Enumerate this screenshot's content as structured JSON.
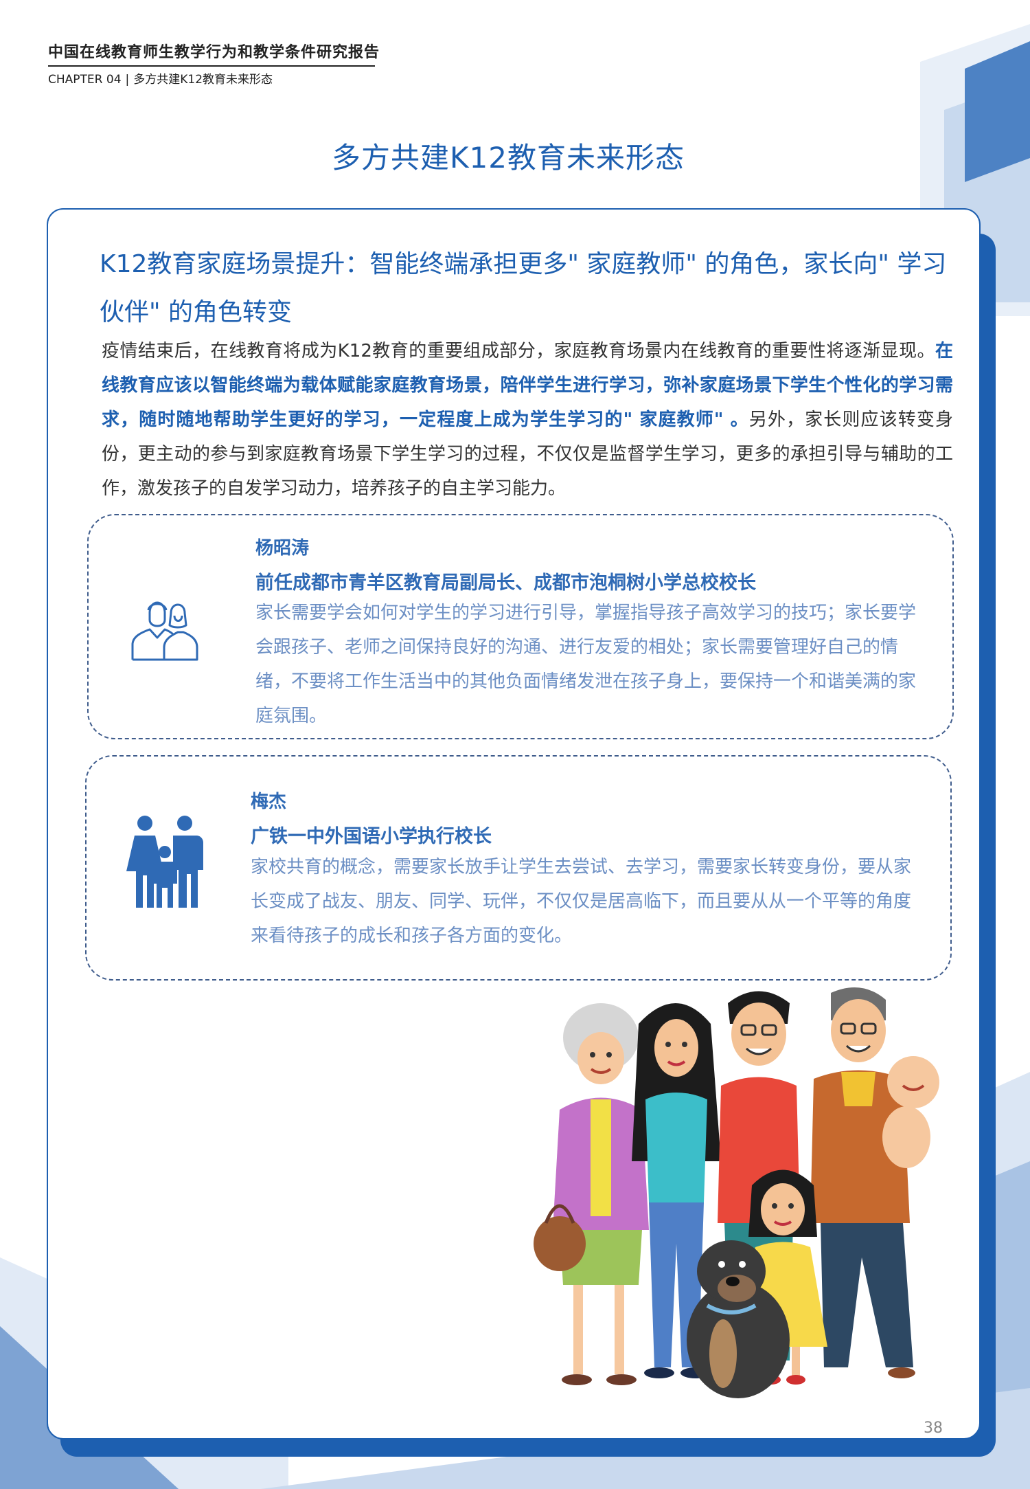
{
  "header": {
    "report_title": "中国在线教育师生教学行为和教学条件研究报告",
    "chapter": "CHAPTER 04",
    "separator": "|",
    "chapter_title": "多方共建K12教育未来形态"
  },
  "page_heading": "多方共建K12教育未来形态",
  "section": {
    "title": "K12教育家庭场景提升：智能终端承担更多\" 家庭教师\" 的角色，家长向\" 学习伙伴\" 的角色转变",
    "body_intro": "疫情结束后，在线教育将成为K12教育的重要组成部分，家庭教育场景内在线教育的重要性将逐渐显现。",
    "body_highlight": "在线教育应该以智能终端为载体赋能家庭教育场景，陪伴学生进行学习，弥补家庭场景下学生个性化的学习需求，随时随地帮助学生更好的学习，一定程度上成为学生学习的\" 家庭教师\" 。",
    "body_rest": "另外，家长则应该转变身份，更主动的参与到家庭教育场景下学生学习的过程，不仅仅是监督学生学习，更多的承担引导与辅助的工作，激发孩子的自发学习动力，培养孩子的自主学习能力。"
  },
  "quotes": [
    {
      "name": "杨昭涛",
      "role": "前任成都市青羊区教育局副局长、成都市泡桐树小学总校校长",
      "text": "家长需要学会如何对学生的学习进行引导，掌握指导孩子高效学习的技巧；家长要学会跟孩子、老师之间保持良好的沟通、进行友爱的相处；家长需要管理好自己的情绪，不要将工作生活当中的其他负面情绪发泄在孩子身上，要保持一个和谐美满的家庭氛围。",
      "icon": "parents-outline-icon"
    },
    {
      "name": "梅杰",
      "role": "广铁一中外国语小学执行校长",
      "text": "家校共育的概念，需要家长放手让学生去尝试、去学习，需要家长转变身份，要从家长变成了战友、朋友、同学、玩伴，不仅仅是居高临下，而且要从从一个平等的角度来看待孩子的成长和孩子各方面的变化。",
      "icon": "family-filled-icon"
    }
  ],
  "illustration": "family-illustration",
  "page_number": "38",
  "colors": {
    "primary": "#1d5fb0",
    "quote_text": "#6c8fc4",
    "deco_light": "#dbe6f4"
  }
}
